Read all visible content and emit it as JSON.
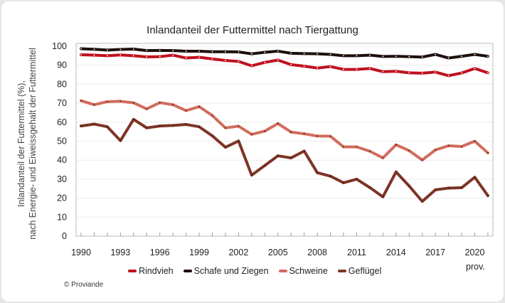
{
  "chart_data": {
    "type": "line",
    "title": "Inlandanteil der Futtermittel nach Tiergattung",
    "ylabel": [
      "Inlandanteil der Futtermittel (%),",
      "nach Energie- und Eiweissgehalt der Futtermittel"
    ],
    "xlabel": "",
    "x": [
      1990,
      1991,
      1992,
      1993,
      1994,
      1995,
      1996,
      1997,
      1998,
      1999,
      2000,
      2001,
      2002,
      2003,
      2004,
      2005,
      2006,
      2007,
      2008,
      2009,
      2010,
      2011,
      2012,
      2013,
      2014,
      2015,
      2016,
      2017,
      2018,
      2019,
      2020,
      2021
    ],
    "xticks": [
      "1990",
      "1993",
      "1996",
      "1999",
      "2002",
      "2005",
      "2008",
      "2011",
      "2014",
      "2017",
      "2020"
    ],
    "xtick_note": "prov.",
    "ylim": [
      0,
      100
    ],
    "yticks": [
      0,
      10,
      20,
      30,
      40,
      50,
      60,
      70,
      80,
      90,
      100
    ],
    "grid": true,
    "legend_position": "bottom",
    "series": [
      {
        "name": "Rindvieh",
        "color": "#c0101e",
        "values": [
          95.5,
          95.3,
          95,
          95.4,
          95,
          94.4,
          94.5,
          95.3,
          93.8,
          94.2,
          93.3,
          92.5,
          92,
          89.7,
          91.5,
          92.7,
          90.3,
          89.5,
          88.5,
          89.3,
          87.8,
          87.8,
          88.3,
          86.6,
          86.8,
          86,
          85.8,
          86.4,
          84.5,
          85.9,
          88.3,
          86
        ]
      },
      {
        "name": "Schafe und Ziegen",
        "color": "#1e0f0c",
        "values": [
          98.7,
          98.4,
          98,
          98.3,
          98.5,
          97.7,
          97.8,
          97.7,
          97.4,
          97.4,
          97.1,
          97.1,
          97,
          96,
          96.8,
          97.4,
          96.3,
          96.1,
          96,
          95.7,
          95,
          95,
          95.3,
          94.6,
          94.7,
          94.5,
          94.3,
          95.7,
          93.8,
          94.7,
          95.7,
          94.7
        ]
      },
      {
        "name": "Schweine",
        "color": "#d26c5c",
        "values": [
          71.3,
          69.2,
          70.8,
          71,
          70.2,
          67,
          70.3,
          69.2,
          66.1,
          68.2,
          63.5,
          57,
          57.9,
          53.6,
          55.3,
          59.3,
          54.8,
          53.9,
          52.7,
          52.6,
          47,
          47,
          44.7,
          41.2,
          48.1,
          45,
          40.1,
          45.4,
          47.6,
          47.2,
          50,
          43.8
        ]
      },
      {
        "name": "Geflügel",
        "color": "#7e3426",
        "values": [
          58,
          59,
          57.6,
          50.3,
          61.5,
          57,
          58,
          58.3,
          58.8,
          57.6,
          52.8,
          46.8,
          50.1,
          32.1,
          37.2,
          42.3,
          41.2,
          44.8,
          33.4,
          31.6,
          28.1,
          30,
          25.6,
          20.7,
          33.8,
          26.4,
          18.3,
          24.4,
          25.3,
          25.5,
          31,
          21.3
        ]
      }
    ]
  },
  "footer": {
    "copyright": "© Proviande"
  }
}
